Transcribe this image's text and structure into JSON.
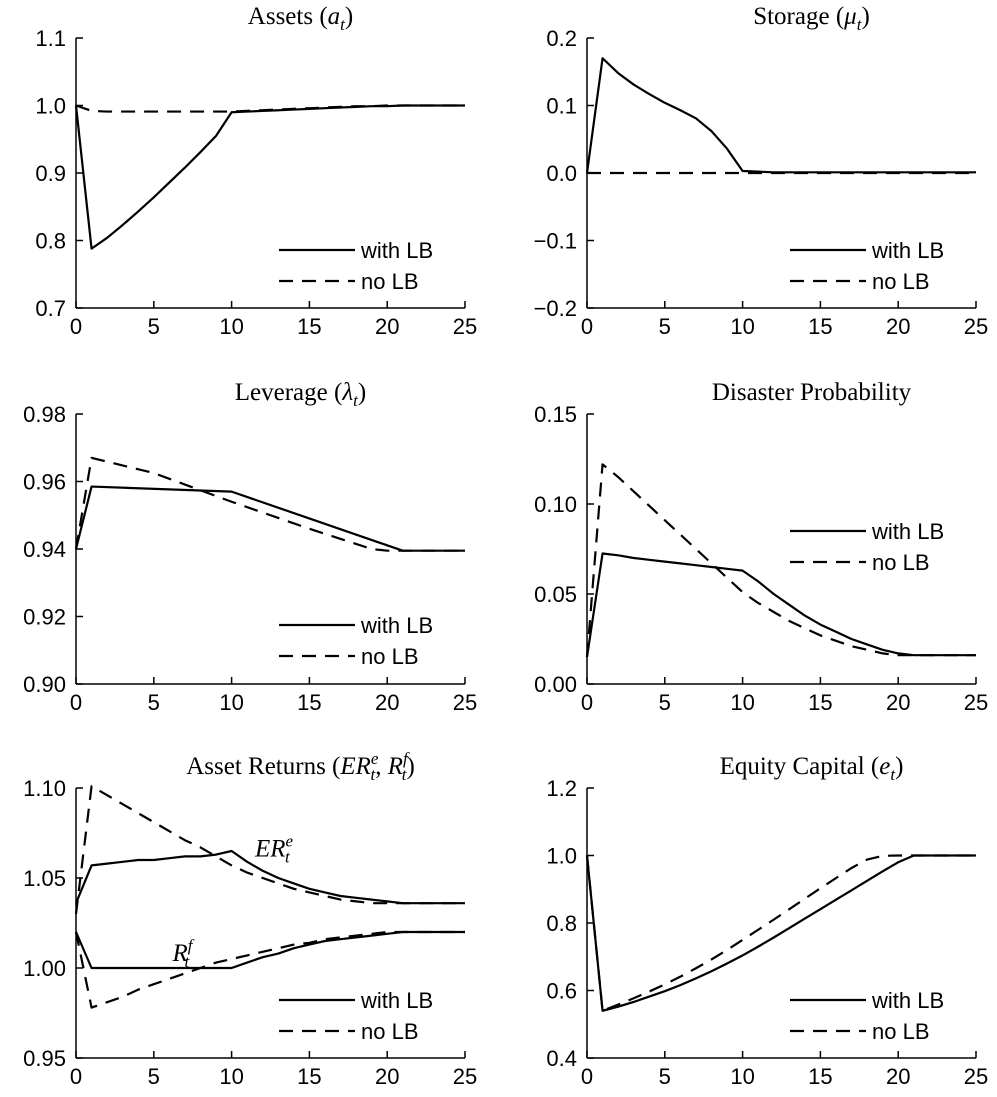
{
  "series_styles": {
    "solid": "solid",
    "dashed": "dashed"
  },
  "colors": {
    "line": "#000000",
    "background": "#ffffff"
  },
  "chart_data": [
    {
      "id": "assets",
      "type": "line",
      "title": "Assets (a_t)",
      "title_main": "Assets (",
      "title_var": "a",
      "title_sub": "t",
      "title_end": ")",
      "xlim": [
        0,
        25
      ],
      "ylim": [
        0.7,
        1.1
      ],
      "xticks": [
        0,
        5,
        10,
        15,
        20,
        25
      ],
      "xtick_labels": [
        "0",
        "5",
        "10",
        "15",
        "20",
        "25"
      ],
      "yticks": [
        0.7,
        0.8,
        0.9,
        1.0,
        1.1
      ],
      "ytick_labels": [
        "0.7",
        "0.8",
        "0.9",
        "1.0",
        "1.1"
      ],
      "legend": {
        "placement": "bottom-right",
        "entries": [
          "with LB",
          "no LB"
        ]
      },
      "series": [
        {
          "name": "with LB",
          "style": "solid",
          "x": [
            0,
            1,
            2,
            3,
            4,
            5,
            6,
            7,
            8,
            9,
            10,
            11,
            12,
            13,
            14,
            15,
            16,
            17,
            18,
            19,
            20,
            21,
            22,
            23,
            24,
            25
          ],
          "y": [
            1.0,
            0.788,
            0.804,
            0.823,
            0.843,
            0.864,
            0.886,
            0.908,
            0.931,
            0.955,
            0.99,
            0.991,
            0.992,
            0.993,
            0.994,
            0.995,
            0.996,
            0.997,
            0.998,
            0.999,
            0.999,
            1.0,
            1.0,
            1.0,
            1.0,
            1.0
          ]
        },
        {
          "name": "no LB",
          "style": "dashed",
          "x": [
            0,
            1,
            2,
            3,
            4,
            5,
            6,
            7,
            8,
            9,
            10,
            11,
            12,
            13,
            14,
            15,
            16,
            17,
            18,
            19,
            20,
            21,
            22,
            23,
            24,
            25
          ],
          "y": [
            1.0,
            0.992,
            0.991,
            0.991,
            0.991,
            0.991,
            0.991,
            0.991,
            0.991,
            0.991,
            0.991,
            0.992,
            0.993,
            0.994,
            0.995,
            0.996,
            0.997,
            0.998,
            0.999,
            0.999,
            1.0,
            1.0,
            1.0,
            1.0,
            1.0,
            1.0
          ]
        }
      ]
    },
    {
      "id": "storage",
      "type": "line",
      "title": "Storage (μ_t)",
      "title_main": "Storage (",
      "title_var": "μ",
      "title_sub": "t",
      "title_end": ")",
      "xlim": [
        0,
        25
      ],
      "ylim": [
        -0.2,
        0.2
      ],
      "xticks": [
        0,
        5,
        10,
        15,
        20,
        25
      ],
      "xtick_labels": [
        "0",
        "5",
        "10",
        "15",
        "20",
        "25"
      ],
      "yticks": [
        -0.2,
        -0.1,
        0.0,
        0.1,
        0.2
      ],
      "ytick_labels": [
        "−0.2",
        "−0.1",
        "0.0",
        "0.1",
        "0.2"
      ],
      "legend": {
        "placement": "bottom-right",
        "entries": [
          "with LB",
          "no LB"
        ]
      },
      "series": [
        {
          "name": "with LB",
          "style": "solid",
          "x": [
            0,
            1,
            2,
            3,
            4,
            5,
            6,
            7,
            8,
            9,
            10,
            11,
            12,
            13,
            14,
            15,
            16,
            17,
            18,
            19,
            20,
            21,
            22,
            23,
            24,
            25
          ],
          "y": [
            0.0,
            0.17,
            0.148,
            0.131,
            0.117,
            0.104,
            0.093,
            0.081,
            0.062,
            0.036,
            0.003,
            0.002,
            0.001,
            0.001,
            0.001,
            0.001,
            0.001,
            0.001,
            0.001,
            0.001,
            0.001,
            0.001,
            0.001,
            0.001,
            0.001,
            0.001
          ]
        },
        {
          "name": "no LB",
          "style": "dashed",
          "x": [
            0,
            25
          ],
          "y": [
            0.0,
            0.0
          ]
        }
      ]
    },
    {
      "id": "leverage",
      "type": "line",
      "title": "Leverage (λ_t)",
      "title_main": "Leverage (",
      "title_var": "λ",
      "title_sub": "t",
      "title_end": ")",
      "xlim": [
        0,
        25
      ],
      "ylim": [
        0.9,
        0.98
      ],
      "xticks": [
        0,
        5,
        10,
        15,
        20,
        25
      ],
      "xtick_labels": [
        "0",
        "5",
        "10",
        "15",
        "20",
        "25"
      ],
      "yticks": [
        0.9,
        0.92,
        0.94,
        0.96,
        0.98
      ],
      "ytick_labels": [
        "0.90",
        "0.92",
        "0.94",
        "0.96",
        "0.98"
      ],
      "legend": {
        "placement": "bottom-right",
        "entries": [
          "with LB",
          "no LB"
        ]
      },
      "series": [
        {
          "name": "with LB",
          "style": "solid",
          "x": [
            0,
            1,
            10,
            21,
            22,
            23,
            24,
            25
          ],
          "y": [
            0.94,
            0.9585,
            0.957,
            0.9395,
            0.9395,
            0.9395,
            0.9395,
            0.9395
          ]
        },
        {
          "name": "no LB",
          "style": "dashed",
          "x": [
            0,
            1,
            5,
            10,
            15,
            19,
            20,
            21,
            22,
            23,
            24,
            25
          ],
          "y": [
            0.94,
            0.967,
            0.9625,
            0.954,
            0.946,
            0.94,
            0.9395,
            0.9395,
            0.9395,
            0.9395,
            0.9395,
            0.9395
          ]
        }
      ]
    },
    {
      "id": "disaster",
      "type": "line",
      "title": "Disaster Probability",
      "title_main": "Disaster Probability",
      "title_var": "",
      "title_sub": "",
      "title_end": "",
      "xlim": [
        0,
        25
      ],
      "ylim": [
        0.0,
        0.15
      ],
      "xticks": [
        0,
        5,
        10,
        15,
        20,
        25
      ],
      "xtick_labels": [
        "0",
        "5",
        "10",
        "15",
        "20",
        "25"
      ],
      "yticks": [
        0.0,
        0.05,
        0.1,
        0.15
      ],
      "ytick_labels": [
        "0.00",
        "0.05",
        "0.10",
        "0.15"
      ],
      "legend": {
        "placement": "right",
        "entries": [
          "with LB",
          "no LB"
        ]
      },
      "series": [
        {
          "name": "with LB",
          "style": "solid",
          "x": [
            0,
            1,
            2,
            3,
            4,
            5,
            6,
            7,
            8,
            9,
            10,
            11,
            12,
            13,
            14,
            15,
            16,
            17,
            18,
            19,
            20,
            21,
            22,
            23,
            24,
            25
          ],
          "y": [
            0.015,
            0.0725,
            0.0715,
            0.07,
            0.069,
            0.068,
            0.067,
            0.066,
            0.065,
            0.064,
            0.063,
            0.057,
            0.05,
            0.044,
            0.038,
            0.033,
            0.029,
            0.025,
            0.022,
            0.019,
            0.017,
            0.016,
            0.016,
            0.016,
            0.016,
            0.016
          ]
        },
        {
          "name": "no LB",
          "style": "dashed",
          "x": [
            0,
            1,
            2,
            3,
            4,
            5,
            6,
            7,
            8,
            9,
            10,
            11,
            12,
            13,
            14,
            15,
            16,
            17,
            18,
            19,
            20,
            21,
            22,
            23,
            24,
            25
          ],
          "y": [
            0.015,
            0.122,
            0.115,
            0.107,
            0.099,
            0.091,
            0.083,
            0.075,
            0.067,
            0.059,
            0.051,
            0.045,
            0.04,
            0.035,
            0.031,
            0.027,
            0.024,
            0.021,
            0.019,
            0.017,
            0.016,
            0.016,
            0.016,
            0.016,
            0.016,
            0.016
          ]
        }
      ]
    },
    {
      "id": "returns",
      "type": "line",
      "title": "Asset Returns (ER_t^e, R_t^f)",
      "title_main": "Asset Returns (",
      "title_var": "ER",
      "title_sub": "t",
      "title_sup": "e",
      "title_sep": ", ",
      "title_var2": "R",
      "title_sub2": "t",
      "title_sup2": "f",
      "title_end": ")",
      "xlim": [
        0,
        25
      ],
      "ylim": [
        0.95,
        1.1
      ],
      "xticks": [
        0,
        5,
        10,
        15,
        20,
        25
      ],
      "xtick_labels": [
        "0",
        "5",
        "10",
        "15",
        "20",
        "25"
      ],
      "yticks": [
        0.95,
        1.0,
        1.05,
        1.1
      ],
      "ytick_labels": [
        "0.95",
        "1.00",
        "1.05",
        "1.10"
      ],
      "legend": {
        "placement": "bottom-right",
        "entries": [
          "with LB",
          "no LB"
        ]
      },
      "annotations": [
        {
          "var": "ER",
          "sup": "e",
          "sub": "t",
          "x": 11.5,
          "y": 1.062
        },
        {
          "var": "R",
          "sup": "f",
          "sub": "t",
          "x": 6.2,
          "y": 1.004
        }
      ],
      "series": [
        {
          "name": "with LB",
          "style": "solid",
          "x": [
            0,
            1,
            2,
            3,
            4,
            5,
            6,
            7,
            8,
            9,
            10,
            11,
            12,
            13,
            14,
            15,
            16,
            17,
            18,
            19,
            20,
            21,
            22,
            23,
            24,
            25
          ],
          "y": [
            1.036,
            1.057,
            1.058,
            1.059,
            1.06,
            1.06,
            1.061,
            1.062,
            1.062,
            1.063,
            1.065,
            1.059,
            1.054,
            1.05,
            1.047,
            1.044,
            1.042,
            1.04,
            1.039,
            1.038,
            1.037,
            1.036,
            1.036,
            1.036,
            1.036,
            1.036
          ]
        },
        {
          "name": "with LB",
          "style": "solid",
          "x": [
            0,
            1,
            2,
            3,
            4,
            5,
            6,
            7,
            8,
            9,
            10,
            11,
            12,
            13,
            14,
            15,
            16,
            17,
            18,
            19,
            20,
            21,
            22,
            23,
            24,
            25
          ],
          "y": [
            1.02,
            1.0,
            1.0,
            1.0,
            1.0,
            1.0,
            1.0,
            1.0,
            1.0,
            1.0,
            1.0,
            1.003,
            1.006,
            1.008,
            1.011,
            1.013,
            1.015,
            1.016,
            1.017,
            1.018,
            1.019,
            1.02,
            1.02,
            1.02,
            1.02,
            1.02
          ]
        },
        {
          "name": "no LB",
          "style": "dashed",
          "x": [
            0,
            1,
            2,
            3,
            4,
            5,
            6,
            7,
            8,
            9,
            10,
            11,
            12,
            13,
            14,
            15,
            16,
            17,
            18,
            19,
            20,
            21,
            22,
            23,
            24,
            25
          ],
          "y": [
            1.03,
            1.101,
            1.096,
            1.091,
            1.086,
            1.081,
            1.076,
            1.071,
            1.067,
            1.062,
            1.057,
            1.053,
            1.05,
            1.047,
            1.044,
            1.042,
            1.04,
            1.038,
            1.037,
            1.036,
            1.036,
            1.036,
            1.036,
            1.036,
            1.036,
            1.036
          ]
        },
        {
          "name": "no LB",
          "style": "dashed",
          "x": [
            0,
            1,
            2,
            3,
            4,
            5,
            6,
            7,
            8,
            9,
            10,
            11,
            12,
            13,
            14,
            15,
            16,
            17,
            18,
            19,
            20,
            21,
            22,
            23,
            24,
            25
          ],
          "y": [
            1.02,
            0.978,
            0.981,
            0.984,
            0.988,
            0.991,
            0.994,
            0.997,
            1.0,
            1.003,
            1.005,
            1.007,
            1.009,
            1.011,
            1.013,
            1.014,
            1.016,
            1.017,
            1.018,
            1.019,
            1.02,
            1.02,
            1.02,
            1.02,
            1.02,
            1.02
          ]
        }
      ]
    },
    {
      "id": "equity",
      "type": "line",
      "title": "Equity Capital (e_t)",
      "title_main": "Equity Capital (",
      "title_var": "e",
      "title_sub": "t",
      "title_end": ")",
      "xlim": [
        0,
        25
      ],
      "ylim": [
        0.4,
        1.2
      ],
      "xticks": [
        0,
        5,
        10,
        15,
        20,
        25
      ],
      "xtick_labels": [
        "0",
        "5",
        "10",
        "15",
        "20",
        "25"
      ],
      "yticks": [
        0.4,
        0.6,
        0.8,
        1.0,
        1.2
      ],
      "ytick_labels": [
        "0.4",
        "0.6",
        "0.8",
        "1.0",
        "1.2"
      ],
      "legend": {
        "placement": "bottom-right",
        "entries": [
          "with LB",
          "no LB"
        ]
      },
      "series": [
        {
          "name": "with LB",
          "style": "solid",
          "x": [
            0,
            1,
            2,
            3,
            4,
            5,
            6,
            7,
            8,
            9,
            10,
            11,
            12,
            13,
            14,
            15,
            16,
            17,
            18,
            19,
            20,
            21,
            22,
            23,
            24,
            25
          ],
          "y": [
            1.0,
            0.54,
            0.552,
            0.566,
            0.582,
            0.598,
            0.616,
            0.636,
            0.657,
            0.68,
            0.704,
            0.73,
            0.757,
            0.785,
            0.813,
            0.841,
            0.869,
            0.897,
            0.925,
            0.953,
            0.98,
            1.0,
            1.0,
            1.0,
            1.0,
            1.0
          ]
        },
        {
          "name": "no LB",
          "style": "dashed",
          "x": [
            0,
            1,
            2,
            3,
            4,
            5,
            6,
            7,
            8,
            9,
            10,
            11,
            12,
            13,
            14,
            15,
            16,
            17,
            18,
            19,
            20,
            21,
            22,
            23,
            24,
            25
          ],
          "y": [
            1.0,
            0.54,
            0.558,
            0.577,
            0.597,
            0.618,
            0.641,
            0.666,
            0.692,
            0.72,
            0.75,
            0.78,
            0.81,
            0.841,
            0.872,
            0.903,
            0.933,
            0.963,
            0.988,
            0.999,
            1.0,
            1.0,
            1.0,
            1.0,
            1.0,
            1.0
          ]
        }
      ]
    }
  ]
}
